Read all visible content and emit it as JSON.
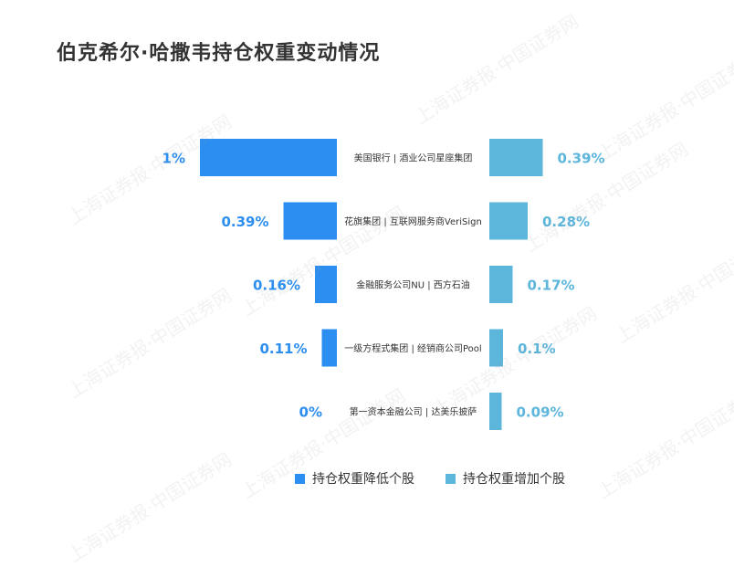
{
  "title": "伯克希尔·哈撒韦持仓权重变动情况",
  "watermark_text": "上海证券报·中国证券网",
  "colors": {
    "decrease": "#2b8ef0",
    "increase": "#5cb5db"
  },
  "chart_data": {
    "type": "bar",
    "title": "伯克希尔·哈撒韦持仓权重变动情况",
    "orientation": "horizontal-diverging",
    "categories": [
      "美国银行 | 酒业公司星座集团",
      "花旗集团 | 互联网服务商VeriSign",
      "金融服务公司NU | 西方石油",
      "一级方程式集团 | 经销商公司Pool",
      "第一资本金融公司 | 达美乐披萨"
    ],
    "series": [
      {
        "name": "持仓权重降低个股",
        "stocks": [
          "美国银行",
          "花旗集团",
          "金融服务公司NU",
          "一级方程式集团",
          "第一资本金融公司"
        ],
        "values": [
          1,
          0.39,
          0.16,
          0.11,
          0
        ],
        "labels": [
          "1%",
          "0.39%",
          "0.16%",
          "0.11%",
          "0%"
        ]
      },
      {
        "name": "持仓权重增加个股",
        "stocks": [
          "酒业公司星座集团",
          "互联网服务商VeriSign",
          "西方石油",
          "经销商公司Pool",
          "达美乐披萨"
        ],
        "values": [
          0.39,
          0.28,
          0.17,
          0.1,
          0.09
        ],
        "labels": [
          "0.39%",
          "0.28%",
          "0.17%",
          "0.1%",
          "0.09%"
        ]
      }
    ],
    "legend": {
      "placement": "bottom-center"
    }
  }
}
